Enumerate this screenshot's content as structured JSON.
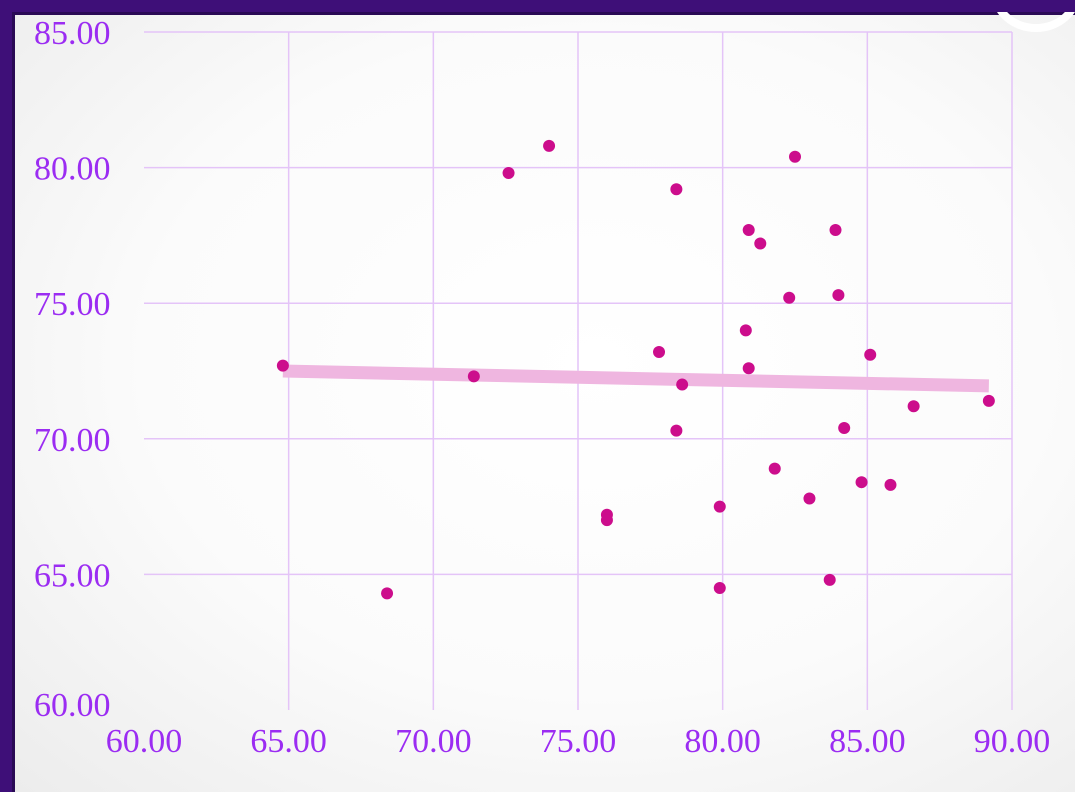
{
  "chart_data": {
    "type": "scatter",
    "title": "",
    "xlabel": "",
    "ylabel": "",
    "xlim": [
      60,
      90
    ],
    "ylim": [
      60,
      85
    ],
    "x_ticks": [
      "60.00",
      "65.00",
      "70.00",
      "75.00",
      "80.00",
      "85.00",
      "90.00"
    ],
    "y_ticks": [
      "60.00",
      "65.00",
      "70.00",
      "75.00",
      "80.00",
      "85.00"
    ],
    "grid": true,
    "colors": {
      "points": "#cc0d8c",
      "trendline": "#efb6e0",
      "grid": "#e4c4f8",
      "ticks": "#9b2cf2",
      "border": "#3e0f78"
    },
    "series": [
      {
        "x": [
          64.8,
          68.4,
          71.4,
          72.6,
          74.0,
          76.0,
          76.0,
          77.8,
          78.4,
          78.4,
          78.6,
          79.9,
          79.9,
          80.8,
          80.9,
          80.9,
          81.3,
          81.8,
          82.3,
          82.5,
          83.0,
          83.7,
          83.9,
          84.0,
          84.2,
          84.8,
          85.1,
          85.8,
          86.6,
          89.2
        ],
        "y": [
          72.7,
          64.3,
          72.3,
          79.8,
          80.8,
          67.2,
          67.0,
          73.2,
          79.2,
          70.3,
          72.0,
          67.5,
          64.5,
          74.0,
          77.7,
          72.6,
          77.2,
          68.9,
          75.2,
          80.4,
          67.8,
          64.8,
          77.7,
          75.3,
          70.4,
          68.4,
          73.1,
          68.3,
          71.2,
          71.4
        ]
      }
    ],
    "trendline": {
      "x": [
        64.8,
        89.2
      ],
      "y": [
        72.5,
        71.95
      ]
    }
  }
}
